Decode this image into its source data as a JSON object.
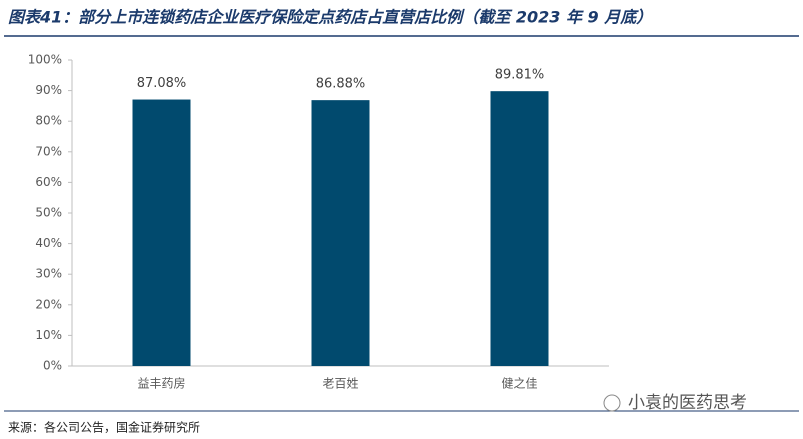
{
  "chart_data": {
    "type": "bar",
    "title": "图表41：部分上市连锁药店企业医疗保险定点药店占直营店比例（截至 2023 年 9 月底）",
    "categories": [
      "益丰药房",
      "老百姓",
      "健之佳"
    ],
    "values": [
      87.08,
      86.88,
      89.81
    ],
    "value_labels": [
      "87.08%",
      "86.88%",
      "89.81%"
    ],
    "color": "#014a6e",
    "ylim": [
      0,
      100
    ],
    "yticks": [
      {
        "value": 0,
        "label": "0%"
      },
      {
        "value": 10,
        "label": "10%"
      },
      {
        "value": 20,
        "label": "20%"
      },
      {
        "value": 30,
        "label": "30%"
      },
      {
        "value": 40,
        "label": "40%"
      },
      {
        "value": 50,
        "label": "50%"
      },
      {
        "value": 60,
        "label": "60%"
      },
      {
        "value": 70,
        "label": "70%"
      },
      {
        "value": 80,
        "label": "80%"
      },
      {
        "value": 90,
        "label": "90%"
      },
      {
        "value": 100,
        "label": "100%"
      }
    ],
    "grid": false,
    "source": "来源：各公司公告，国金证券研究所",
    "watermark": "小袁的医药思考"
  }
}
